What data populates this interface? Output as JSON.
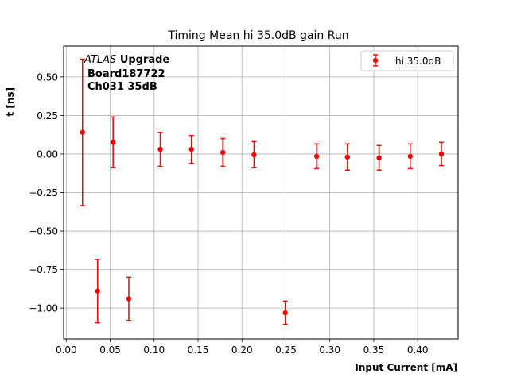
{
  "chart_data": {
    "type": "scatter",
    "title": "Timing Mean hi 35.0dB gain Run",
    "xlabel": "Input Current [mA]",
    "ylabel": "t [ns]",
    "xlim": [
      -0.003,
      0.446
    ],
    "ylim": [
      -1.2,
      0.7
    ],
    "grid": true,
    "legend_position": "top-right",
    "xticks": [
      0.0,
      0.05,
      0.1,
      0.15,
      0.2,
      0.25,
      0.3,
      0.35,
      0.4
    ],
    "xtick_labels": [
      "0.00",
      "0.05",
      "0.10",
      "0.15",
      "0.20",
      "0.25",
      "0.30",
      "0.35",
      "0.40"
    ],
    "yticks": [
      0.5,
      0.25,
      0.0,
      -0.25,
      -0.5,
      -0.75,
      -1.0
    ],
    "ytick_labels": [
      "0.50",
      "0.25",
      "0.00",
      "−0.25",
      "−0.50",
      "−0.75",
      "−1.00"
    ],
    "annotation": {
      "atlas": "ATLAS",
      "upgrade": "Upgrade",
      "line2": "Board187722",
      "line3": "Ch031 35dB"
    },
    "series": [
      {
        "name": "hi 35.0dB",
        "color": "#ff0000",
        "x": [
          0.0185,
          0.0357,
          0.0533,
          0.0712,
          0.107,
          0.1425,
          0.1782,
          0.2137,
          0.2493,
          0.285,
          0.32,
          0.356,
          0.3915,
          0.427
        ],
        "y": [
          0.14,
          -0.89,
          0.075,
          -0.94,
          0.03,
          0.03,
          0.01,
          -0.005,
          -1.03,
          -0.015,
          -0.02,
          -0.025,
          -0.015,
          0.0
        ],
        "yerr": [
          0.475,
          0.205,
          0.165,
          0.14,
          0.11,
          0.09,
          0.09,
          0.085,
          0.075,
          0.08,
          0.085,
          0.08,
          0.08,
          0.075
        ]
      }
    ]
  }
}
